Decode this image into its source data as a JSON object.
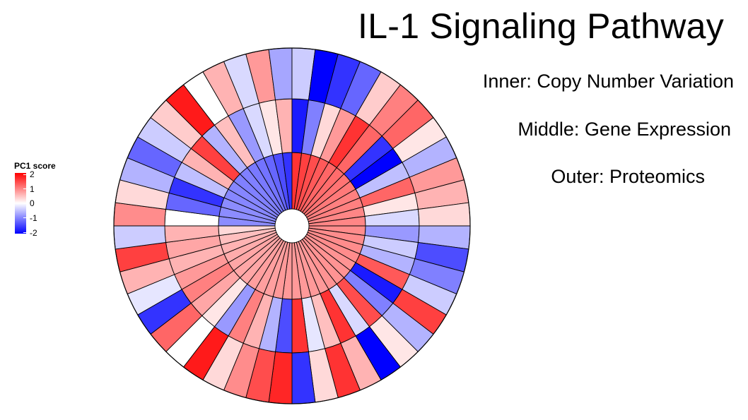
{
  "title": "IL-1 Signaling Pathway",
  "ring_labels": {
    "inner": "Inner: Copy Number Variation",
    "middle": "Middle: Gene Expression",
    "outer": "Outer: Proteomics"
  },
  "legend": {
    "title": "PC1 score",
    "ticks": [
      "2",
      "1",
      "0",
      "-1",
      "-2"
    ]
  },
  "colors": {
    "high": "#ff0000",
    "mid": "#ffffff",
    "low": "#0000ff",
    "border": "#000000"
  },
  "chart_data": {
    "type": "heatmap",
    "layout": "circular",
    "segments": 48,
    "value_range": [
      -2,
      2
    ],
    "title": "IL-1 Signaling Pathway",
    "rings": [
      {
        "name": "Inner: Copy Number Variation",
        "values": [
          -0.9,
          -0.9,
          -0.9,
          -0.95,
          -0.95,
          -1.0,
          -1.0,
          -1.05,
          -1.1,
          -1.2,
          -1.4,
          -1.6,
          1.6,
          1.5,
          1.4,
          1.3,
          1.2,
          1.15,
          1.1,
          1.05,
          1.0,
          1.0,
          0.95,
          0.95,
          0.9,
          0.9,
          0.9,
          0.9,
          0.85,
          0.85,
          0.85,
          0.85,
          0.8,
          0.8,
          0.8,
          0.8,
          0.8,
          0.8,
          0.75,
          0.75,
          0.75,
          0.7,
          0.7,
          0.7,
          0.65,
          0.6,
          0.5,
          0.3
        ]
      },
      {
        "name": "Middle: Gene Expression",
        "values": [
          0.0,
          -1.2,
          -1.6,
          -0.5,
          0.6,
          1.5,
          -0.6,
          0.5,
          -0.8,
          -0.3,
          0.2,
          0.6,
          -1.8,
          -1.0,
          0.3,
          0.8,
          1.6,
          1.2,
          -1.6,
          -2.0,
          -0.5,
          1.2,
          0.2,
          -0.3,
          -0.8,
          -0.4,
          -0.6,
          1.3,
          -1.8,
          -1.0,
          1.4,
          -0.3,
          1.6,
          0.5,
          -0.2,
          1.6,
          -1.4,
          -0.6,
          0.6,
          1.0,
          -0.8,
          0.2,
          0.7,
          1.0,
          0.8,
          0.6,
          0.7,
          0.6
        ]
      },
      {
        "name": "Outer: Proteomics",
        "values": [
          0.9,
          0.3,
          -0.6,
          -1.2,
          -0.4,
          0.4,
          1.8,
          0.0,
          0.6,
          -0.3,
          0.8,
          -0.7,
          -0.4,
          -2.0,
          -1.6,
          -1.2,
          0.4,
          1.0,
          1.2,
          0.2,
          -0.6,
          0.8,
          0.6,
          0.3,
          -0.6,
          -1.4,
          -1.0,
          -0.4,
          1.5,
          -0.6,
          0.2,
          -2.0,
          0.6,
          1.6,
          0.3,
          -1.6,
          1.7,
          1.4,
          0.9,
          0.3,
          1.8,
          0.0,
          1.2,
          -1.6,
          -0.2,
          0.6,
          1.5,
          -0.4
        ]
      }
    ]
  }
}
